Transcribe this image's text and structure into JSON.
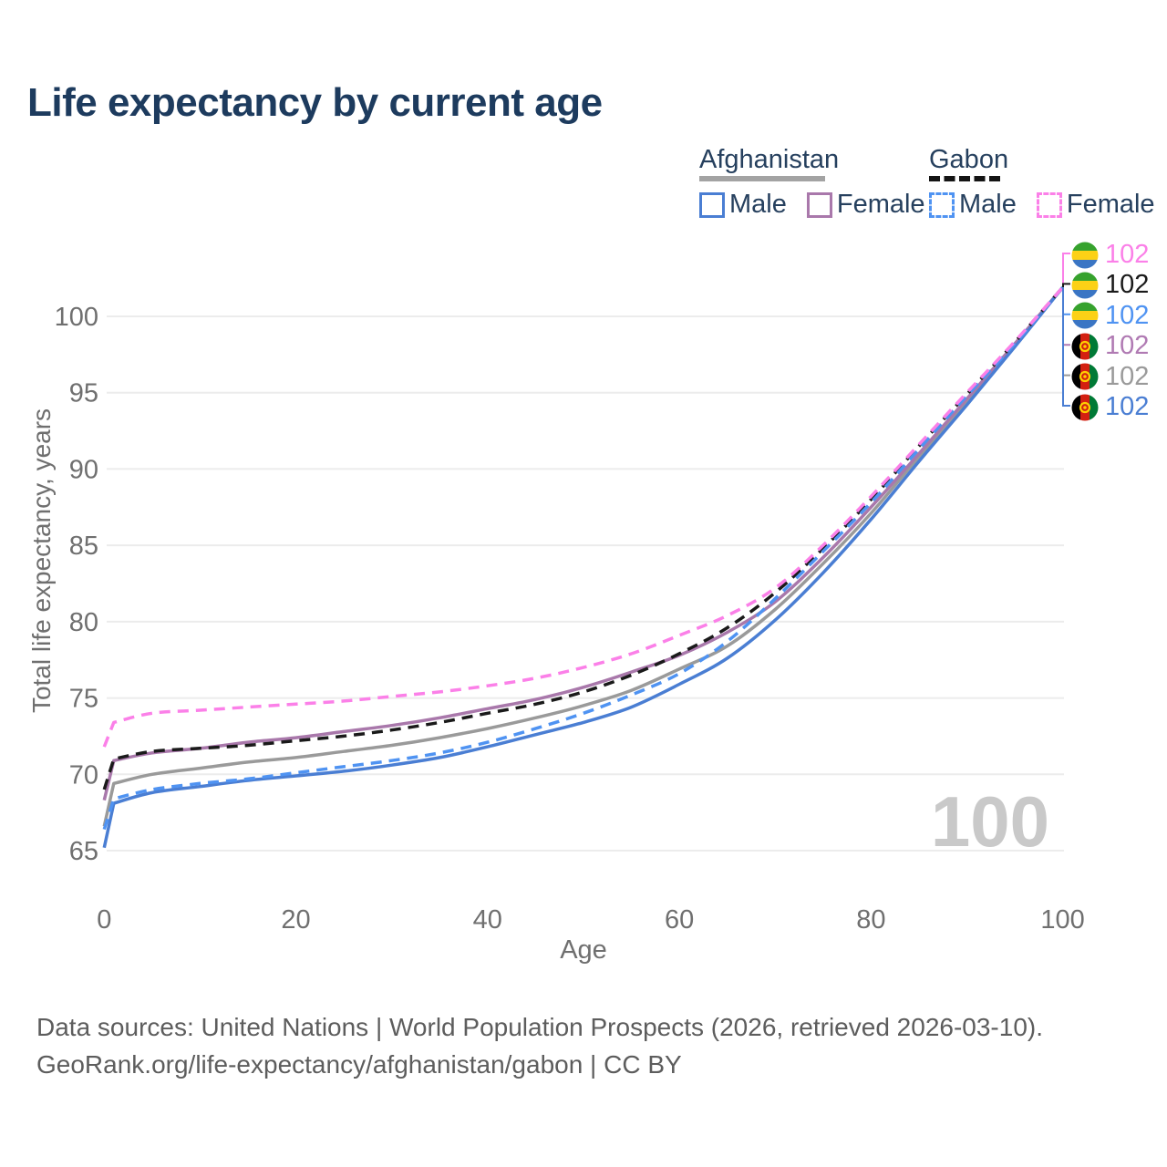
{
  "title": "Life expectancy by current age",
  "watermark": "100",
  "legend": {
    "groups": [
      {
        "country": "Afghanistan",
        "underline_color": "#a3a3a3",
        "underline_style": "solid",
        "items": [
          {
            "label": "Male",
            "color": "#4a7ed3",
            "dashed": false
          },
          {
            "label": "Female",
            "color": "#a978ab",
            "dashed": false
          }
        ]
      },
      {
        "country": "Gabon",
        "underline_color": "#141414",
        "underline_style": "dashed",
        "items": [
          {
            "label": "Male",
            "color": "#4f93f2",
            "dashed": true
          },
          {
            "label": "Female",
            "color": "#fb80e8",
            "dashed": true
          }
        ]
      }
    ]
  },
  "flags": {
    "gabon": {
      "orientation": "horizontal",
      "stripes": [
        "#36a22d",
        "#fcd116",
        "#3a75c4"
      ]
    },
    "afghanistan": {
      "orientation": "vertical",
      "stripes": [
        "#000000",
        "#d32011",
        "#007a36"
      ],
      "emblem": "#ffce00"
    }
  },
  "chart_data": {
    "type": "line",
    "title": "Life expectancy by current age",
    "xlabel": "Age",
    "ylabel": "Total life expectancy, years",
    "xlim": [
      0,
      100
    ],
    "ylim": [
      65,
      103
    ],
    "grid": "horizontal",
    "x_ticks": [
      0,
      20,
      40,
      60,
      80,
      100
    ],
    "y_ticks": [
      65,
      70,
      75,
      80,
      85,
      90,
      95,
      100
    ],
    "ages": [
      0,
      1,
      5,
      10,
      15,
      20,
      25,
      30,
      35,
      40,
      45,
      50,
      55,
      60,
      65,
      70,
      75,
      80,
      85,
      90,
      95,
      100
    ],
    "series": [
      {
        "name": "Afghanistan Total",
        "color": "#9a9a9a",
        "dashed": false,
        "values": [
          66.6,
          69.4,
          70.0,
          70.4,
          70.8,
          71.1,
          71.5,
          71.9,
          72.4,
          73.0,
          73.7,
          74.5,
          75.5,
          76.9,
          78.4,
          80.8,
          83.8,
          87.1,
          90.8,
          94.4,
          98.1,
          101.9
        ]
      },
      {
        "name": "Afghanistan Female",
        "color": "#a978ab",
        "dashed": false,
        "values": [
          68.3,
          70.9,
          71.4,
          71.7,
          72.1,
          72.4,
          72.8,
          73.2,
          73.7,
          74.3,
          74.9,
          75.7,
          76.7,
          77.8,
          79.3,
          81.3,
          84.2,
          87.5,
          91.0,
          94.6,
          98.2,
          101.9
        ]
      },
      {
        "name": "Afghanistan Male",
        "color": "#4a7ed3",
        "dashed": false,
        "values": [
          65.2,
          68.1,
          68.8,
          69.2,
          69.6,
          69.9,
          70.2,
          70.6,
          71.1,
          71.8,
          72.6,
          73.4,
          74.4,
          75.9,
          77.6,
          80.1,
          83.2,
          86.7,
          90.5,
          94.2,
          98.0,
          101.9
        ]
      },
      {
        "name": "Gabon Total",
        "color": "#1a1a1a",
        "dashed": true,
        "values": [
          69.0,
          71.0,
          71.5,
          71.7,
          71.9,
          72.2,
          72.5,
          72.9,
          73.4,
          74.0,
          74.6,
          75.4,
          76.5,
          77.9,
          79.6,
          81.9,
          84.8,
          88.0,
          91.5,
          94.9,
          98.3,
          101.9
        ]
      },
      {
        "name": "Gabon Male",
        "color": "#4f93f2",
        "dashed": true,
        "values": [
          66.4,
          68.4,
          69.0,
          69.4,
          69.7,
          70.1,
          70.5,
          70.9,
          71.4,
          72.1,
          73.0,
          74.0,
          75.2,
          76.6,
          78.7,
          81.5,
          84.6,
          87.8,
          91.3,
          94.8,
          98.2,
          101.9
        ]
      },
      {
        "name": "Gabon Female",
        "color": "#fb80e8",
        "dashed": true,
        "values": [
          71.8,
          73.4,
          74.0,
          74.2,
          74.4,
          74.6,
          74.8,
          75.1,
          75.4,
          75.8,
          76.3,
          77.0,
          77.9,
          79.1,
          80.4,
          82.2,
          85.0,
          88.2,
          91.6,
          95.0,
          98.35,
          101.9
        ]
      }
    ],
    "end_labels": [
      {
        "series": "Gabon Female",
        "value": "102",
        "flag": "gabon",
        "color": "#fb80e8"
      },
      {
        "series": "Gabon Total",
        "value": "102",
        "flag": "gabon",
        "color": "#1a1a1a"
      },
      {
        "series": "Gabon Male",
        "value": "102",
        "flag": "gabon",
        "color": "#4f93f2"
      },
      {
        "series": "Afghanistan Female",
        "value": "102",
        "flag": "afghanistan",
        "color": "#b07ab3"
      },
      {
        "series": "Afghanistan Total",
        "value": "102",
        "flag": "afghanistan",
        "color": "#9a9a9a"
      },
      {
        "series": "Afghanistan Male",
        "value": "102",
        "flag": "afghanistan",
        "color": "#4a7ed3"
      }
    ]
  },
  "footer": {
    "line1": "Data sources: United Nations | World Population Prospects (2026, retrieved 2026-03-10).",
    "line2": "GeoRank.org/life-expectancy/afghanistan/gabon | CC BY"
  }
}
